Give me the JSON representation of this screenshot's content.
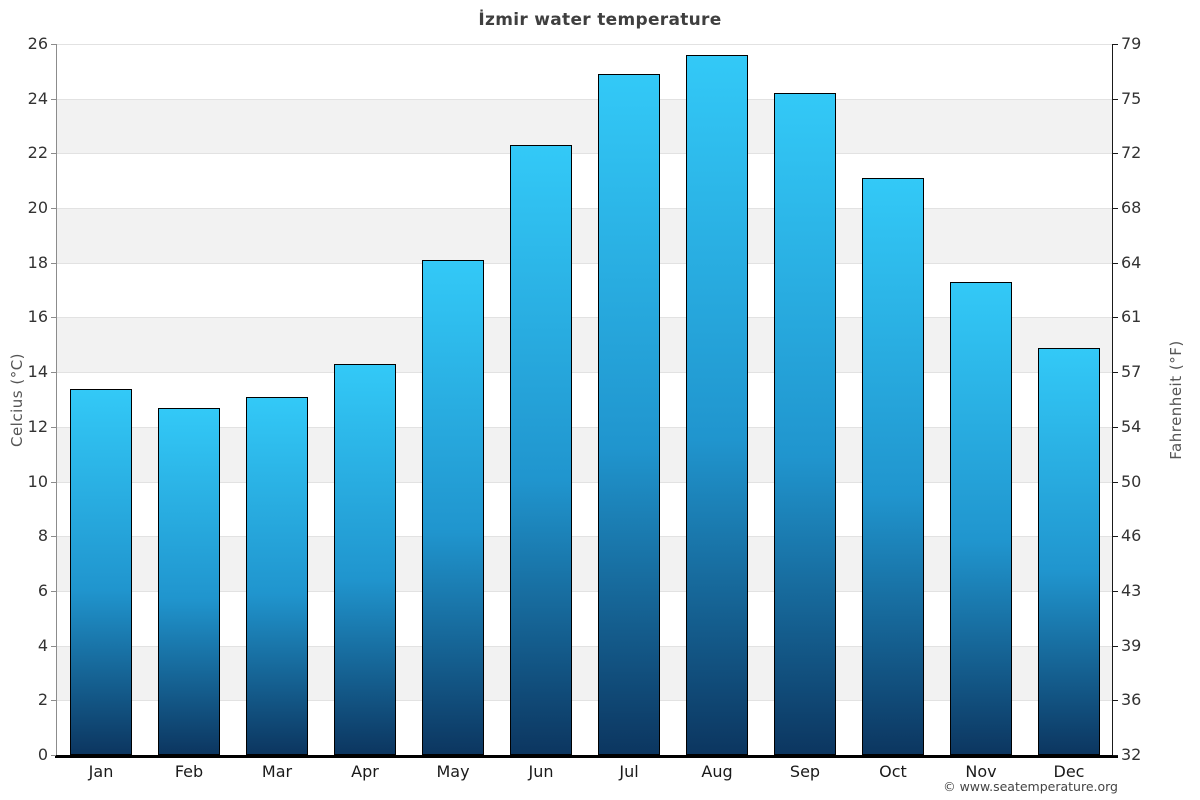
{
  "chart_data": {
    "type": "bar",
    "title": "İzmir water temperature",
    "categories": [
      "Jan",
      "Feb",
      "Mar",
      "Apr",
      "May",
      "Jun",
      "Jul",
      "Aug",
      "Sep",
      "Oct",
      "Nov",
      "Dec"
    ],
    "series": [
      {
        "name": "Water temperature",
        "unit": "°C",
        "values": [
          13.4,
          12.7,
          13.1,
          14.3,
          18.1,
          22.3,
          24.9,
          25.6,
          24.2,
          21.1,
          17.3,
          14.9
        ]
      }
    ],
    "ylabel_left": "Celcius (°C)",
    "ylabel_right": "Fahrenheit (°F)",
    "ylim": [
      0,
      26
    ],
    "ytick_step": 2,
    "yticks_celsius": [
      26,
      24,
      22,
      20,
      18,
      16,
      14,
      12,
      10,
      8,
      6,
      4,
      2,
      0
    ],
    "yticks_fahrenheit": [
      79,
      75,
      72,
      68,
      64,
      61,
      57,
      54,
      50,
      46,
      43,
      39,
      36,
      32
    ],
    "xlabel": "",
    "legend": "none",
    "grid": "horizontal gridlines with alternating white/gray bands",
    "copyright": "© www.seatemperature.org",
    "colors": {
      "bar_gradient_top": "#33c9f7",
      "bar_gradient_mid": "#2095ce",
      "bar_gradient_bottom": "#0c3660",
      "bar_border": "#000000",
      "band_white": "#ffffff",
      "band_gray": "#f2f2f2",
      "gridline": "#e2e2e2",
      "axis_left": "#8c8c8c",
      "axis_right": "#1a1a1a",
      "axis_bottom": "#000000",
      "title_color": "#3f3f3f",
      "tick_label_color": "#333333"
    }
  }
}
